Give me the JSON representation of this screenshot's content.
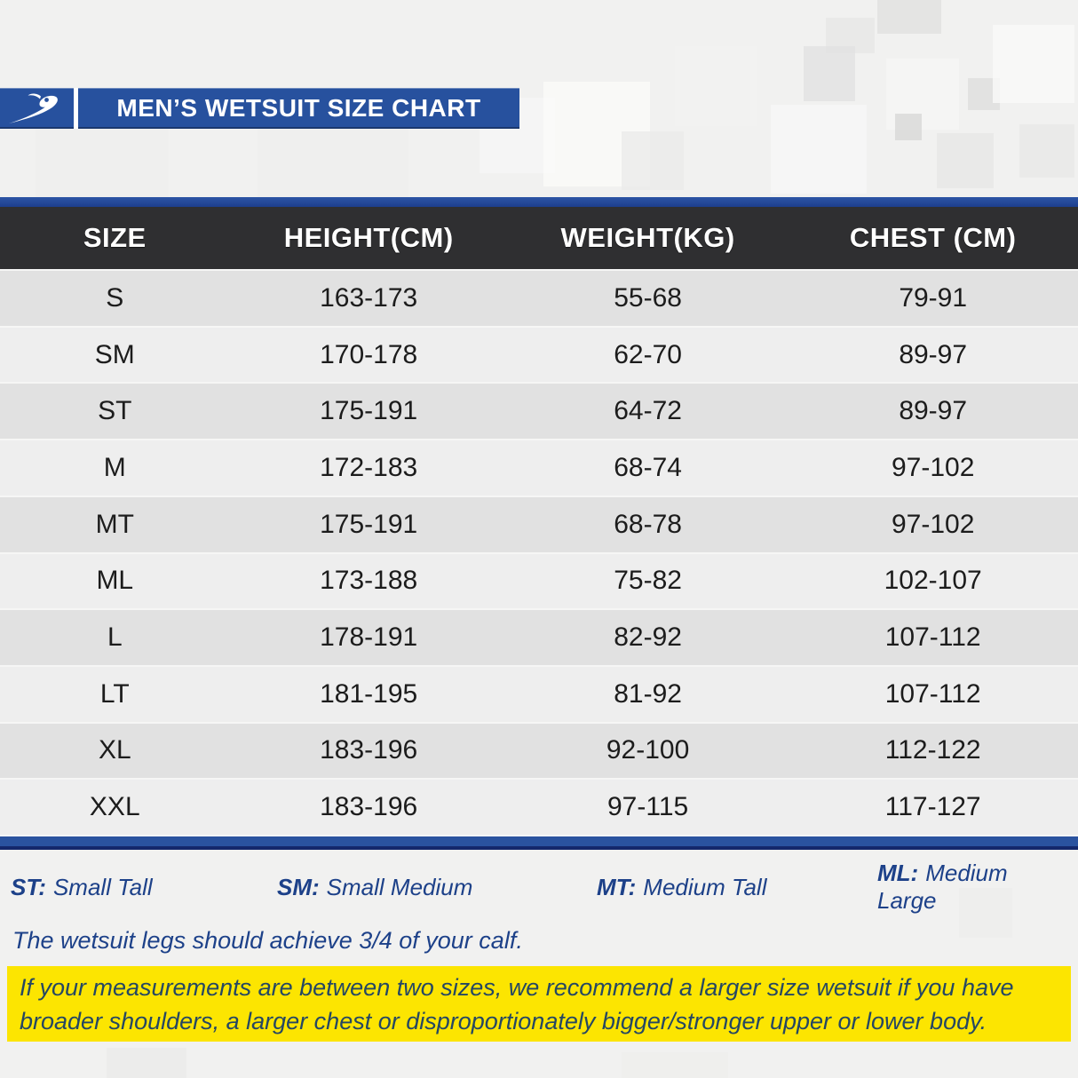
{
  "header": {
    "title": "MEN’S WETSUIT SIZE CHART",
    "logo_icon": "swoosh-s-logo"
  },
  "table": {
    "columns": [
      "SIZE",
      "HEIGHT(CM)",
      "WEIGHT(KG)",
      "CHEST (CM)"
    ],
    "rows": [
      [
        "S",
        "163-173",
        "55-68",
        "79-91"
      ],
      [
        "SM",
        "170-178",
        "62-70",
        "89-97"
      ],
      [
        "ST",
        "175-191",
        "64-72",
        "89-97"
      ],
      [
        "M",
        "172-183",
        "68-74",
        "97-102"
      ],
      [
        "MT",
        "175-191",
        "68-78",
        "97-102"
      ],
      [
        "ML",
        "173-188",
        "75-82",
        "102-107"
      ],
      [
        "L",
        "178-191",
        "82-92",
        "107-112"
      ],
      [
        "LT",
        "181-195",
        "81-92",
        "107-112"
      ],
      [
        "XL",
        "183-196",
        "92-100",
        "112-122"
      ],
      [
        "XXL",
        "183-196",
        "97-115",
        "117-127"
      ]
    ]
  },
  "legend": {
    "items": [
      {
        "abbr": "ST:",
        "label": "Small Tall"
      },
      {
        "abbr": "SM:",
        "label": "Small Medium"
      },
      {
        "abbr": "MT:",
        "label": "Medium Tall"
      },
      {
        "abbr": "ML:",
        "label": "Medium Large"
      }
    ]
  },
  "notes": {
    "calf_note": "The wetsuit legs should achieve 3/4 of your calf.",
    "size_recommendation": "If your measurements are between two sizes, we recommend a larger size wetsuit if you have broader shoulders, a larger chest or disproportionately bigger/stronger upper or lower body."
  },
  "colors": {
    "accent_blue": "#27519E",
    "dark_navy": "#14286B",
    "header_dark": "#2F2F31",
    "row_odd": "#E1E1E1",
    "row_even": "#EEEEEE",
    "highlight_yellow": "#FCE501",
    "legend_text_blue": "#1D4189",
    "note_text_navy": "#254763"
  },
  "chart_data": {
    "type": "table",
    "title": "MEN’S WETSUIT SIZE CHART",
    "columns": [
      "SIZE",
      "HEIGHT(CM)",
      "WEIGHT(KG)",
      "CHEST (CM)"
    ],
    "rows": [
      [
        "S",
        "163-173",
        "55-68",
        "79-91"
      ],
      [
        "SM",
        "170-178",
        "62-70",
        "89-97"
      ],
      [
        "ST",
        "175-191",
        "64-72",
        "89-97"
      ],
      [
        "M",
        "172-183",
        "68-74",
        "97-102"
      ],
      [
        "MT",
        "175-191",
        "68-78",
        "97-102"
      ],
      [
        "ML",
        "173-188",
        "75-82",
        "102-107"
      ],
      [
        "L",
        "178-191",
        "82-92",
        "107-112"
      ],
      [
        "LT",
        "181-195",
        "81-92",
        "107-112"
      ],
      [
        "XL",
        "183-196",
        "92-100",
        "112-122"
      ],
      [
        "XXL",
        "183-196",
        "97-115",
        "117-127"
      ]
    ],
    "annotations": [
      "ST: Small Tall",
      "SM: Small Medium",
      "MT: Medium Tall",
      "ML: Medium Large",
      "The wetsuit legs should achieve 3/4 of your calf.",
      "If your measurements are between two sizes, we recommend a larger size wetsuit if you have broader shoulders, a larger chest or disproportionately bigger/stronger upper or lower body."
    ]
  }
}
